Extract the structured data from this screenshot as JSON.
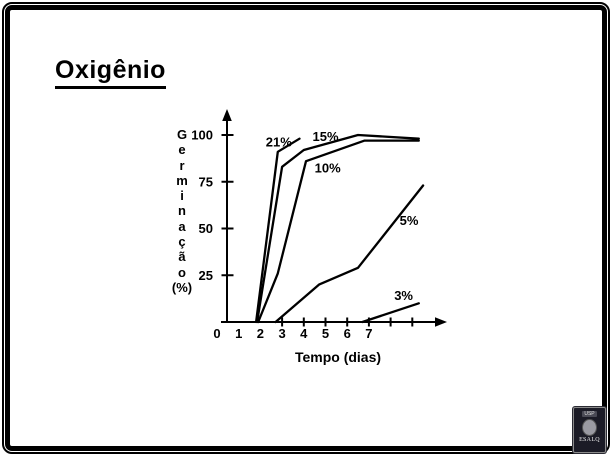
{
  "slide": {
    "title": "Oxigênio",
    "logo": {
      "top_text": "USP",
      "bottom_text": "ESALQ"
    }
  },
  "chart_data": {
    "type": "line",
    "title": "Oxigênio",
    "xlabel": "Tempo (dias)",
    "ylabel": "Germinação (%)",
    "ylabel_stacked": [
      "G",
      "e",
      "r",
      "m",
      "i",
      "n",
      "a",
      "ç",
      "ã",
      "o",
      "(%)"
    ],
    "xlim": [
      0,
      10.3
    ],
    "ylim": [
      0,
      110
    ],
    "grid": false,
    "legend": "inline labels next to each curve",
    "line_color": "#000000",
    "x_tick_labels": [
      "0",
      "1",
      "2",
      "3",
      "4",
      "5",
      "6",
      "7"
    ],
    "x_tick_values": [
      0,
      1,
      2,
      3,
      4,
      5,
      6,
      7
    ],
    "x_tick_marks": [
      3,
      4,
      5,
      6,
      7,
      8,
      9
    ],
    "y_tick_values": [
      25,
      50,
      75,
      100
    ],
    "series": [
      {
        "name": "21%",
        "points": [
          [
            1.8,
            0
          ],
          [
            2.8,
            91
          ],
          [
            3.8,
            98
          ]
        ],
        "label_at": [
          2.85,
          96
        ]
      },
      {
        "name": "15%",
        "points": [
          [
            1.85,
            0
          ],
          [
            3.0,
            83
          ],
          [
            4.0,
            92
          ],
          [
            6.5,
            100
          ],
          [
            9.3,
            98
          ]
        ],
        "label_at": [
          5.0,
          99
        ]
      },
      {
        "name": "10%",
        "points": [
          [
            1.9,
            0
          ],
          [
            2.8,
            26
          ],
          [
            4.1,
            86
          ],
          [
            6.8,
            97
          ],
          [
            9.3,
            97
          ]
        ],
        "label_at": [
          5.1,
          82
        ]
      },
      {
        "name": "5%",
        "points": [
          [
            2.7,
            0
          ],
          [
            4.7,
            20
          ],
          [
            6.5,
            29
          ],
          [
            9.5,
            73
          ]
        ],
        "label_at": [
          8.85,
          54
        ]
      },
      {
        "name": "3%",
        "points": [
          [
            6.7,
            0
          ],
          [
            9.3,
            10
          ]
        ],
        "label_at": [
          8.6,
          14
        ]
      }
    ]
  }
}
